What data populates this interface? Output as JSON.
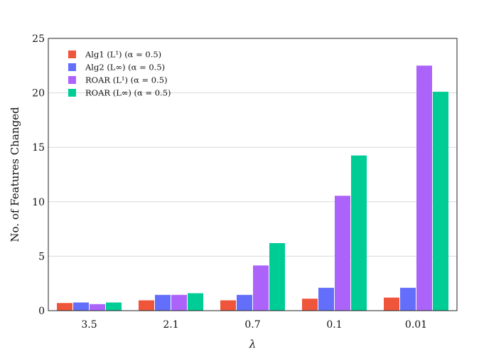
{
  "chart_data": {
    "type": "bar",
    "categories": [
      "3.5",
      "2.1",
      "0.7",
      "0.1",
      "0.01"
    ],
    "series": [
      {
        "name": "Alg1 (L¹) (α = 0.5)",
        "color": "#EF553B",
        "values": [
          0.7,
          0.95,
          0.95,
          1.1,
          1.2
        ]
      },
      {
        "name": "Alg2 (L∞) (α = 0.5)",
        "color": "#636EFA",
        "values": [
          0.75,
          1.45,
          1.45,
          2.1,
          2.1
        ]
      },
      {
        "name": "ROAR (L¹) (α = 0.5)",
        "color": "#AB63FA",
        "values": [
          0.6,
          1.45,
          4.15,
          10.55,
          22.5
        ]
      },
      {
        "name": "ROAR (L∞) (α = 0.5)",
        "color": "#00CC96",
        "values": [
          0.75,
          1.6,
          6.2,
          14.25,
          20.1
        ]
      }
    ],
    "xlabel": "λ",
    "ylabel": "No. of Features Changed",
    "ylim": [
      0,
      25
    ],
    "yticks": [
      0,
      5,
      10,
      15,
      20,
      25
    ],
    "grid": "horizontal",
    "legend_position": "top-left"
  }
}
